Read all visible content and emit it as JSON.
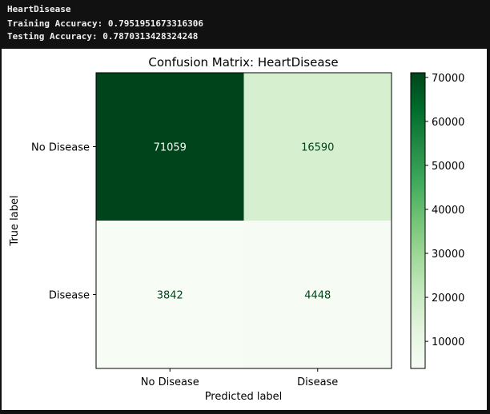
{
  "console": {
    "model_name": "HeartDisease",
    "training_accuracy": "Training Accuracy: 0.7951951673316306",
    "testing_accuracy": "Testing Accuracy: 0.7870313428324248"
  },
  "colors": {
    "cmap_low": "#f7fcf5",
    "cmap_high": "#00441b",
    "text_on_dark": "#f7fcf5",
    "text_on_light": "#00441b"
  },
  "chart_data": {
    "type": "heatmap",
    "title": "Confusion Matrix: HeartDisease",
    "xlabel": "Predicted label",
    "ylabel": "True label",
    "x_categories": [
      "No Disease",
      "Disease"
    ],
    "y_categories": [
      "No Disease",
      "Disease"
    ],
    "values": [
      [
        71059,
        16590
      ],
      [
        3842,
        4448
      ]
    ],
    "colorbar": {
      "min": 3842,
      "max": 71059,
      "ticks": [
        10000,
        20000,
        30000,
        40000,
        50000,
        60000,
        70000
      ],
      "tick_labels": [
        "10000",
        "20000",
        "30000",
        "40000",
        "50000",
        "60000",
        "70000"
      ]
    },
    "grid": false
  }
}
